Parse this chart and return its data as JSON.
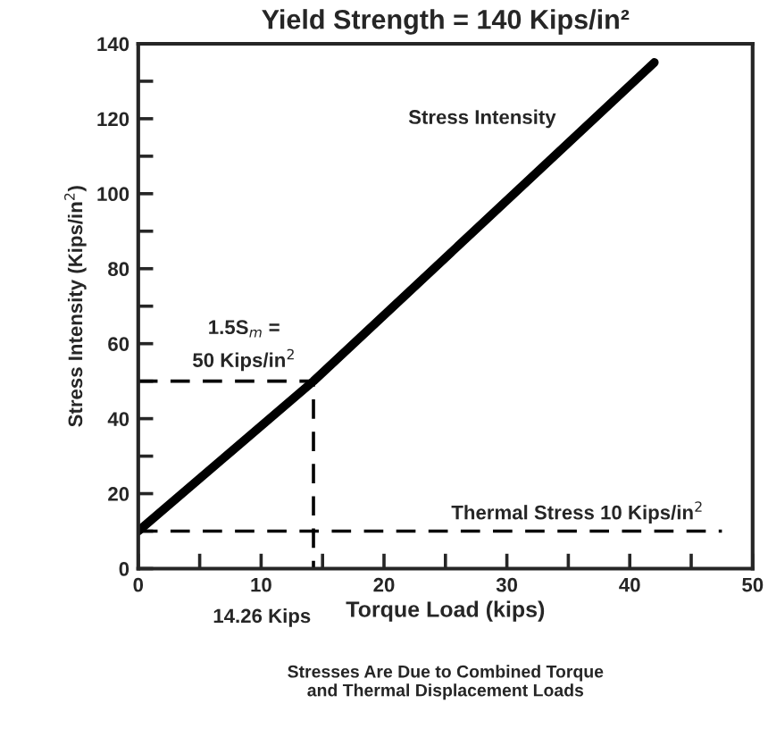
{
  "chart_data": {
    "type": "line",
    "title": "Yield Strength = 140 Kips/in²",
    "xlabel": "Torque Load (kips)",
    "ylabel": "Stress Intensity (Kips/in$^{2}$)",
    "series": [
      {
        "name": "Stress Intensity",
        "color": "#000000",
        "x": [
          0,
          14.26,
          42
        ],
        "values": [
          10,
          50,
          135
        ]
      },
      {
        "color": "#000000",
        "x": [
          0,
          14.26,
          14.26
        ],
        "values": [
          50,
          50,
          0
        ],
        "line_style": "dashed"
      }
    ],
    "ref_lines": [
      {
        "axis": "y",
        "value": 10,
        "label": "Thermal Stress 10 Kips/in$^{2}$",
        "line_style": "dashed",
        "color": "#000000"
      }
    ],
    "annotations": [
      {
        "text": "1.5S$_{m}$ =\n50 Kips/in$^{2}$",
        "x": 14.26,
        "y": 50
      },
      {
        "text": "14.26 Kips",
        "x": 14.26,
        "y": 0
      },
      "Stresses Are Due to Combined Torque\nand Thermal Displacement Loads"
    ],
    "xlim": [
      0,
      50
    ],
    "ylim": [
      0,
      140
    ],
    "xticks": [
      0,
      {
        "value": 5,
        "label": null
      },
      10,
      {
        "value": 15,
        "label": null
      },
      20,
      {
        "value": 25,
        "label": null
      },
      30,
      {
        "value": 35,
        "label": null
      },
      40,
      {
        "value": 45,
        "label": null
      },
      50
    ],
    "yticks": [
      0,
      {
        "value": 10,
        "label": null
      },
      20,
      {
        "value": 30,
        "label": null
      },
      40,
      {
        "value": 50,
        "label": null
      },
      60,
      {
        "value": 70,
        "label": null
      },
      80,
      {
        "value": 90,
        "label": null
      },
      100,
      {
        "value": 110,
        "label": null
      },
      120,
      {
        "value": 130,
        "label": null
      },
      140
    ],
    "grid": false,
    "legend": false,
    "marker": "none",
    "line_style": "solid"
  }
}
